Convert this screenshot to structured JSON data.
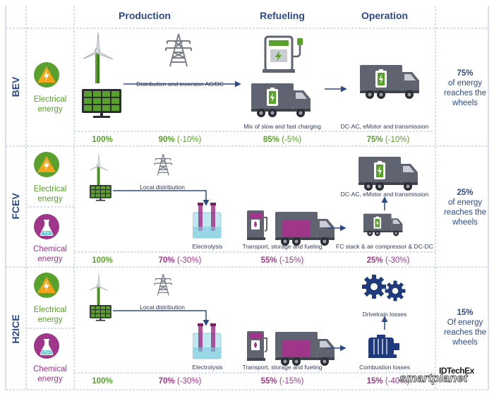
{
  "headers": {
    "production": "Production",
    "refueling": "Refueling",
    "operation": "Operation"
  },
  "rows": {
    "bev": {
      "label": "BEV",
      "energy": "Electrical energy",
      "step1": "Distribution and inversion AC/DC",
      "step2": "Mix of slow and fast charging",
      "step3": "DC-AC, eMotor and transmission",
      "p1": "100%",
      "p2_main": "90%",
      "p2_delta": "(-10%)",
      "p3_main": "85%",
      "p3_delta": "(-5%)",
      "p4_main": "75%",
      "p4_delta": "(-10%)",
      "summary_pct": "75%",
      "summary_text": "of energy reaches the wheels"
    },
    "fcev": {
      "label": "FCEV",
      "energy1": "Electrical energy",
      "energy2": "Chemical energy",
      "step1": "Local distribution",
      "step2": "Electrolysis",
      "step3": "Transport, storage and fueling",
      "step4": "FC stack & air compressor & DC-DC",
      "step5": "DC-AC, eMotor and transmission",
      "p1": "100%",
      "p2_main": "70%",
      "p2_delta": "(-30%)",
      "p3_main": "55%",
      "p3_delta": "(-15%)",
      "p4_main": "25%",
      "p4_delta": "(-30%)",
      "summary_pct": "25%",
      "summary_text": "of energy reaches the wheels"
    },
    "h2ice": {
      "label": "H2ICE",
      "energy1": "Electrical energy",
      "energy2": "Chemical energy",
      "step1": "Local distribution",
      "step2": "Electrolysis",
      "step3": "Transport, storage and fueling",
      "step4": "Combustion losses",
      "step5": "Drivetrain losses",
      "p1": "100%",
      "p2_main": "70%",
      "p2_delta": "(-30%)",
      "p3_main": "55%",
      "p3_delta": "(-15%)",
      "p4_main": "15%",
      "p4_delta": "(-40%)",
      "summary_pct": "15%",
      "summary_text": "Of energy reaches the wheels"
    }
  },
  "logos": {
    "idtechex": "IDTechEx",
    "smartplanet": "smartplanet"
  },
  "colors": {
    "navy": "#2e4a86",
    "green": "#5aa02c",
    "purple": "#a0368a",
    "orange": "#f2a51b",
    "truck": "#5f6470"
  }
}
